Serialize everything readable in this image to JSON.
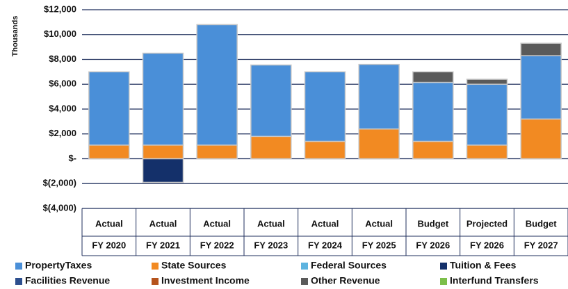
{
  "chart_data": {
    "type": "stacked_bar",
    "ylabel": "Thousands",
    "categories": [
      [
        "Actual",
        "FY 2020"
      ],
      [
        "Actual",
        "FY 2021"
      ],
      [
        "Actual",
        "FY 2022"
      ],
      [
        "Actual",
        "FY 2023"
      ],
      [
        "Actual",
        "FY 2024"
      ],
      [
        "Actual",
        "FY 2025"
      ],
      [
        "Budget",
        "FY 2026"
      ],
      [
        "Projected",
        "FY 2026"
      ],
      [
        "Budget",
        "FY 2027"
      ]
    ],
    "series": [
      {
        "name": "PropertyTaxes",
        "color": "#4a8fd8",
        "values": [
          5900,
          7400,
          9700,
          5750,
          5600,
          5200,
          4750,
          4900,
          5100
        ]
      },
      {
        "name": "State Sources",
        "color": "#f28a22",
        "values": [
          1100,
          1100,
          1100,
          1800,
          1400,
          2400,
          1400,
          1100,
          3200
        ]
      },
      {
        "name": "Federal Sources",
        "color": "#5db3df",
        "values": [
          0,
          0,
          0,
          0,
          0,
          0,
          0,
          0,
          0
        ]
      },
      {
        "name": "Tuition & Fees",
        "color": "#14306a",
        "values": [
          0,
          -1900,
          0,
          0,
          0,
          0,
          0,
          0,
          0
        ]
      },
      {
        "name": "Facilities Revenue",
        "color": "#2d4f8e",
        "values": [
          0,
          0,
          0,
          0,
          0,
          0,
          0,
          0,
          0
        ]
      },
      {
        "name": "Investment Income",
        "color": "#b5531c",
        "values": [
          0,
          0,
          0,
          0,
          0,
          0,
          0,
          0,
          0
        ]
      },
      {
        "name": "Other Revenue",
        "color": "#5a5a5a",
        "values": [
          0,
          0,
          0,
          0,
          0,
          0,
          850,
          400,
          1000
        ]
      },
      {
        "name": "Interfund Transfers",
        "color": "#7cbf4a",
        "values": [
          0,
          0,
          0,
          0,
          0,
          0,
          0,
          0,
          0
        ]
      }
    ],
    "ylim": [
      -4000,
      12000
    ],
    "yticks": [
      {
        "value": -4000,
        "label": "$(4,000)"
      },
      {
        "value": -2000,
        "label": "$(2,000)"
      },
      {
        "value": 0,
        "label": "$-"
      },
      {
        "value": 2000,
        "label": "$2,000"
      },
      {
        "value": 4000,
        "label": "$4,000"
      },
      {
        "value": 6000,
        "label": "$6,000"
      },
      {
        "value": 8000,
        "label": "$8,000"
      },
      {
        "value": 10000,
        "label": "$10,000"
      },
      {
        "value": 12000,
        "label": "$12,000"
      }
    ],
    "grid": true
  }
}
